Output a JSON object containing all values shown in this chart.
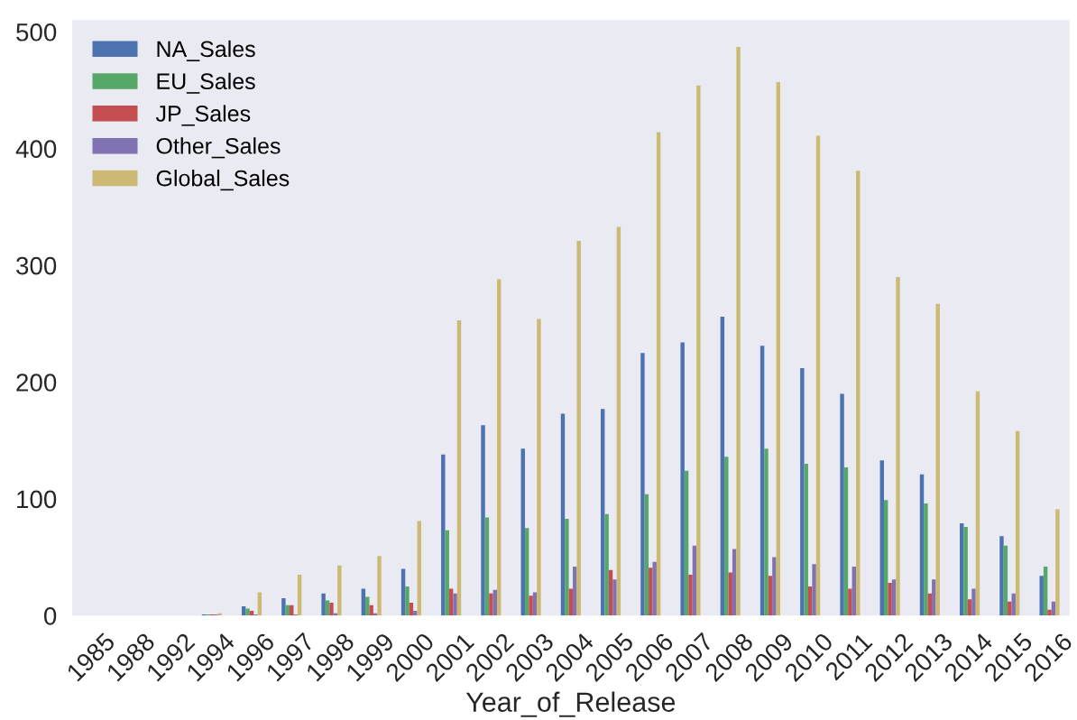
{
  "chart_data": {
    "type": "bar",
    "xlabel": "Year_of_Release",
    "categories": [
      "1985",
      "1988",
      "1992",
      "1994",
      "1996",
      "1997",
      "1998",
      "1999",
      "2000",
      "2001",
      "2002",
      "2003",
      "2004",
      "2005",
      "2006",
      "2007",
      "2008",
      "2009",
      "2010",
      "2011",
      "2012",
      "2013",
      "2014",
      "2015",
      "2016"
    ],
    "series": [
      {
        "name": "NA_Sales",
        "color": "#4c72b0",
        "values": [
          0,
          0,
          0,
          1,
          8,
          15,
          19,
          23,
          40,
          138,
          163,
          143,
          173,
          177,
          225,
          234,
          256,
          231,
          212,
          190,
          133,
          121,
          79,
          68,
          34
        ]
      },
      {
        "name": "EU_Sales",
        "color": "#55a868",
        "values": [
          0,
          0,
          0,
          1,
          6,
          9,
          13,
          16,
          25,
          73,
          84,
          75,
          83,
          87,
          104,
          124,
          136,
          143,
          130,
          127,
          99,
          96,
          76,
          60,
          42
        ]
      },
      {
        "name": "JP_Sales",
        "color": "#c44e52",
        "values": [
          0,
          0,
          0,
          1,
          4,
          9,
          11,
          9,
          11,
          23,
          19,
          17,
          23,
          39,
          41,
          35,
          37,
          34,
          25,
          23,
          28,
          19,
          14,
          12,
          5
        ]
      },
      {
        "name": "Other_Sales",
        "color": "#8172b2",
        "values": [
          0,
          0,
          0,
          1,
          1,
          1,
          2,
          2,
          4,
          19,
          22,
          20,
          42,
          31,
          46,
          60,
          57,
          50,
          44,
          42,
          31,
          31,
          23,
          19,
          12
        ]
      },
      {
        "name": "Global_Sales",
        "color": "#ccb974",
        "values": [
          0,
          0,
          0,
          2,
          20,
          35,
          43,
          51,
          81,
          253,
          288,
          254,
          321,
          333,
          414,
          454,
          487,
          457,
          411,
          381,
          290,
          267,
          192,
          158,
          91
        ]
      }
    ],
    "ylim": [
      0,
      510
    ],
    "yticks": [
      0,
      100,
      200,
      300,
      400,
      500
    ],
    "grid": false,
    "legend": "top left"
  }
}
